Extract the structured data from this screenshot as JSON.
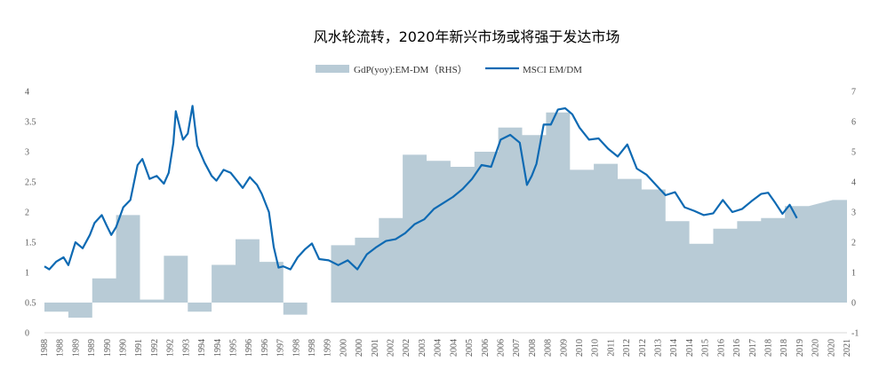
{
  "chart_data": {
    "type": "line",
    "title": "风水轮流转，2020年新兴市场或将强于发达市场",
    "legend": [
      {
        "name": "GdP(yoy):EM-DM（RHS）",
        "kind": "area",
        "color": "#b8cbd6"
      },
      {
        "name": "MSCI EM/DM",
        "kind": "line",
        "color": "#0e6ab3"
      }
    ],
    "left_axis": {
      "min": 0,
      "max": 4,
      "ticks": [
        "0",
        "0.5",
        "1",
        "1.5",
        "2",
        "2.5",
        "3",
        "3.5",
        "4"
      ]
    },
    "right_axis": {
      "min": -1,
      "max": 7,
      "ticks": [
        "-1",
        "0",
        "1",
        "2",
        "3",
        "4",
        "5",
        "6",
        "7"
      ]
    },
    "x_ticks": [
      "1988",
      "1988",
      "1989",
      "1989",
      "1990",
      "1990",
      "1991",
      "1992",
      "1992",
      "1993",
      "1994",
      "1994",
      "1995",
      "1996",
      "1996",
      "1997",
      "1998",
      "1998",
      "1999",
      "2000",
      "2000",
      "2001",
      "2002",
      "2002",
      "2003",
      "2004",
      "2004",
      "2005",
      "2006",
      "2006",
      "2007",
      "2008",
      "2008",
      "2009",
      "2010",
      "2010",
      "2011",
      "2012",
      "2012",
      "2013",
      "2014",
      "2014",
      "2015",
      "2016",
      "2016",
      "2017",
      "2018",
      "2018",
      "2019",
      "2020",
      "2020",
      "2021"
    ],
    "x_range": [
      1988,
      2021.6
    ],
    "area_series": {
      "name": "GdP(yoy):EM-DM（RHS）",
      "x": [
        1988,
        1989,
        1989,
        1990,
        1990,
        1991,
        1991,
        1992,
        1992,
        1993,
        1993,
        1994,
        1994,
        1995,
        1995,
        1996,
        1996,
        1997,
        1997,
        1998,
        1998,
        1999,
        1999,
        2000,
        2000,
        2001,
        2001,
        2002,
        2002,
        2003,
        2003,
        2004,
        2004,
        2005,
        2005,
        2006,
        2006,
        2007,
        2007,
        2008,
        2008,
        2009,
        2009,
        2010,
        2010,
        2011,
        2011,
        2012,
        2012,
        2013,
        2013,
        2014,
        2014,
        2015,
        2015,
        2016,
        2016,
        2017,
        2017,
        2018,
        2018,
        2019,
        2019,
        2020,
        2020.5,
        2021,
        2021.6
      ],
      "y": [
        -0.3,
        -0.3,
        -0.5,
        -0.5,
        0.8,
        0.8,
        2.9,
        2.9,
        0.1,
        0.1,
        1.55,
        1.55,
        -0.3,
        -0.3,
        1.25,
        1.25,
        2.1,
        2.1,
        1.35,
        1.35,
        -0.4,
        -0.4,
        0,
        0,
        1.9,
        1.9,
        2.15,
        2.15,
        2.8,
        2.8,
        4.9,
        4.9,
        4.7,
        4.7,
        4.5,
        4.5,
        5.0,
        5.0,
        5.8,
        5.8,
        5.55,
        5.55,
        6.3,
        6.3,
        4.4,
        4.4,
        4.6,
        4.6,
        4.1,
        4.1,
        3.75,
        3.75,
        2.7,
        2.7,
        1.95,
        1.95,
        2.45,
        2.45,
        2.7,
        2.7,
        2.8,
        2.8,
        3.2,
        3.2,
        3.3,
        3.4,
        3.4
      ]
    },
    "line_series": {
      "name": "MSCI EM/DM",
      "x": [
        1988.0,
        1988.2,
        1988.5,
        1988.8,
        1989.0,
        1989.3,
        1989.6,
        1989.9,
        1990.1,
        1990.4,
        1990.6,
        1990.8,
        1991.0,
        1991.3,
        1991.6,
        1991.9,
        1992.1,
        1992.4,
        1992.7,
        1993.0,
        1993.2,
        1993.4,
        1993.5,
        1993.7,
        1993.8,
        1994.0,
        1994.2,
        1994.4,
        1994.7,
        1995.0,
        1995.2,
        1995.5,
        1995.8,
        1996.0,
        1996.3,
        1996.6,
        1996.9,
        1997.1,
        1997.4,
        1997.6,
        1997.8,
        1998.0,
        1998.3,
        1998.6,
        1998.9,
        1999.2,
        1999.5,
        1999.9,
        2000.3,
        2000.7,
        2001.1,
        2001.5,
        2001.9,
        2002.3,
        2002.7,
        2003.1,
        2003.5,
        2003.9,
        2004.3,
        2004.7,
        2005.1,
        2005.5,
        2005.9,
        2006.3,
        2006.7,
        2007.1,
        2007.5,
        2007.9,
        2008.2,
        2008.4,
        2008.6,
        2008.9,
        2009.2,
        2009.5,
        2009.8,
        2010.1,
        2010.4,
        2010.8,
        2011.2,
        2011.6,
        2012.0,
        2012.4,
        2012.8,
        2013.2,
        2013.6,
        2014.0,
        2014.4,
        2014.8,
        2015.2,
        2015.6,
        2016.0,
        2016.4,
        2016.8,
        2017.2,
        2017.6,
        2018.0,
        2018.3,
        2018.6,
        2018.9,
        2019.2,
        2019.5
      ],
      "y": [
        1.1,
        1.05,
        1.18,
        1.25,
        1.12,
        1.5,
        1.4,
        1.62,
        1.82,
        1.95,
        1.78,
        1.62,
        1.75,
        2.08,
        2.2,
        2.78,
        2.88,
        2.55,
        2.6,
        2.47,
        2.65,
        3.15,
        3.67,
        3.35,
        3.2,
        3.3,
        3.76,
        3.1,
        2.82,
        2.6,
        2.52,
        2.7,
        2.65,
        2.55,
        2.4,
        2.58,
        2.45,
        2.3,
        2.0,
        1.42,
        1.08,
        1.1,
        1.05,
        1.25,
        1.38,
        1.48,
        1.22,
        1.2,
        1.12,
        1.2,
        1.05,
        1.3,
        1.42,
        1.52,
        1.55,
        1.65,
        1.8,
        1.88,
        2.05,
        2.15,
        2.25,
        2.38,
        2.55,
        2.78,
        2.75,
        3.2,
        3.28,
        3.15,
        2.45,
        2.6,
        2.8,
        3.45,
        3.45,
        3.7,
        3.72,
        3.62,
        3.4,
        3.2,
        3.22,
        3.05,
        2.92,
        3.12,
        2.72,
        2.62,
        2.45,
        2.28,
        2.33,
        2.08,
        2.02,
        1.95,
        1.98,
        2.2,
        2.0,
        2.05,
        2.18,
        2.3,
        2.32,
        2.15,
        1.97,
        2.12,
        1.9
      ]
    }
  }
}
